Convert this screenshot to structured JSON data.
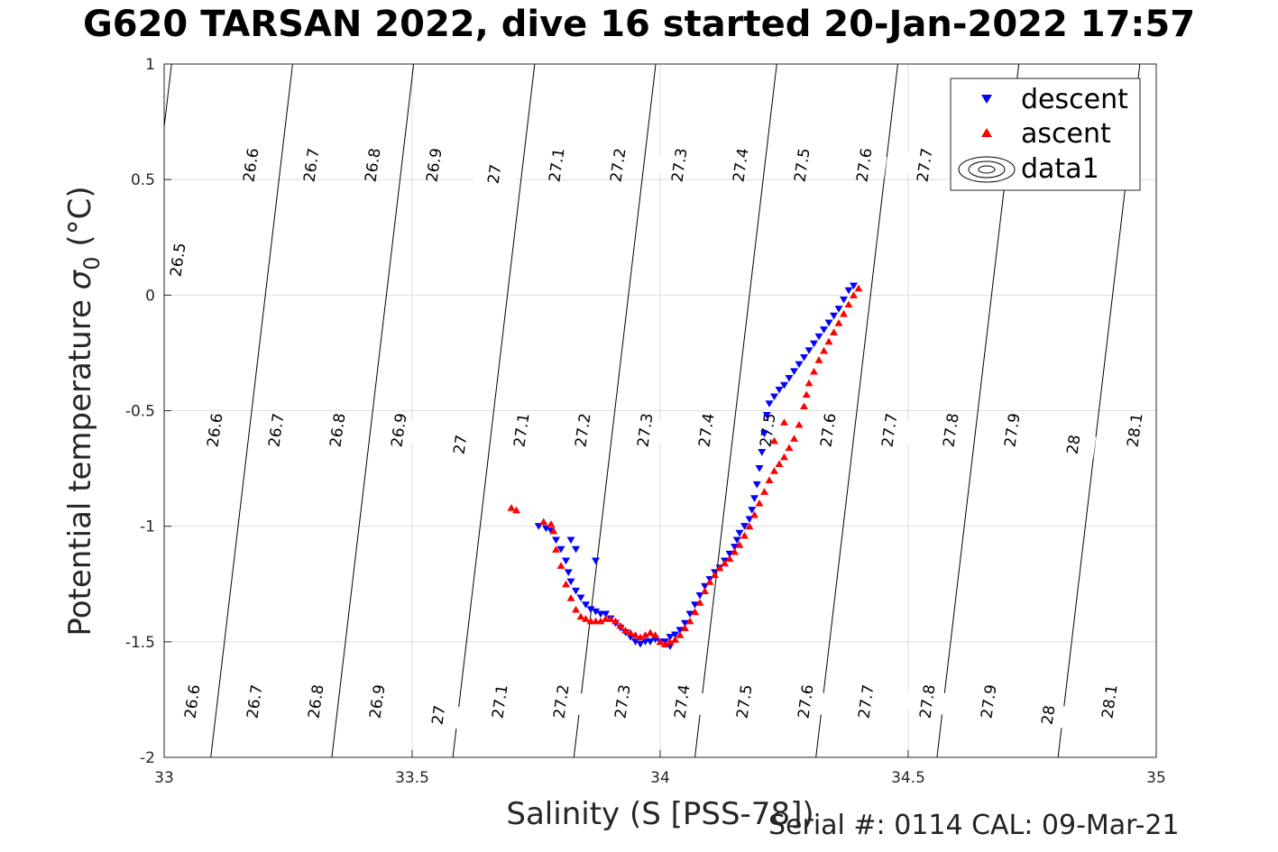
{
  "title": "G620 TARSAN 2022, dive 16 started 20-Jan-2022 17:57",
  "footer": "Serial #: 0114  CAL: 09-Mar-21",
  "chart_data": {
    "type": "scatter",
    "title": "G620 TARSAN 2022, dive 16 started 20-Jan-2022 17:57",
    "xlabel": "Salinity (S [PSS-78])",
    "ylabel_main": "Potential temperature ",
    "ylabel_sigma": "σ",
    "ylabel_sub": "0",
    "ylabel_unit": " (°C)",
    "xlim": [
      33,
      35
    ],
    "ylim": [
      -2,
      1
    ],
    "xticks": [
      33,
      33.5,
      34,
      34.5,
      35
    ],
    "xtick_labels": [
      "33",
      "33.5",
      "34",
      "34.5",
      "35"
    ],
    "yticks": [
      1,
      0.5,
      0,
      -0.5,
      -1,
      -1.5,
      -2
    ],
    "ytick_labels": [
      "1",
      "0.5",
      "0",
      "-0.5",
      "-1",
      "-1.5",
      "-2"
    ],
    "grid": true,
    "legend_position": "top-right",
    "legend": [
      {
        "name": "descent",
        "marker": "triangle-down",
        "color": "#0000ff"
      },
      {
        "name": "ascent",
        "marker": "triangle-up",
        "color": "#ff0000"
      },
      {
        "name": "data1",
        "marker": "contour"
      }
    ],
    "contour_levels": [
      26.5,
      26.6,
      26.7,
      26.8,
      26.9,
      27,
      27.1,
      27.2,
      27.3,
      27.4,
      27.5,
      27.6,
      27.7,
      27.8,
      27.9,
      28,
      28.1
    ],
    "contour_labels": [
      {
        "text": "26.5",
        "s": 33.05,
        "t": 0.15
      },
      {
        "text": "26.6",
        "s": 33.35,
        "t": 0.55
      },
      {
        "text": "26.7",
        "s": 33.59,
        "t": 0.55
      },
      {
        "text": "26.8",
        "s": 33.84,
        "t": 0.55
      },
      {
        "text": "26.9",
        "s": 34.09,
        "t": 0.55
      },
      {
        "text": "27",
        "s": 34.32,
        "t": 0.55
      },
      {
        "text": "27.1",
        "s": 34.56,
        "t": 0.55
      },
      {
        "text": "27.2",
        "s": 34.81,
        "t": 0.55
      },
      {
        "text": "27.3",
        "s": 35.05,
        "t": 0.55
      },
      {
        "text": "27.4",
        "s": 35.29,
        "t": 0.55
      },
      {
        "text": "27.5",
        "s": 35.52,
        "t": 0.55
      },
      {
        "text": "27.6",
        "s": 35.76,
        "t": 0.55
      },
      {
        "text": "27.7",
        "s": 36.0,
        "t": 0.55
      },
      {
        "text": "26.6",
        "s": 33.18,
        "t": -0.6
      },
      {
        "text": "26.7",
        "s": 33.43,
        "t": -0.6
      },
      {
        "text": "26.8",
        "s": 33.67,
        "t": -0.6
      },
      {
        "text": "26.9",
        "s": 33.92,
        "t": -0.6
      },
      {
        "text": "27",
        "s": 34.16,
        "t": -0.6
      },
      {
        "text": "27.1",
        "s": 34.4,
        "t": -0.6
      },
      {
        "text": "27.2",
        "s": 34.64,
        "t": -0.6
      },
      {
        "text": "27.3",
        "s": 34.88,
        "t": -0.6
      },
      {
        "text": "27.4",
        "s": 35.13,
        "t": -0.6
      },
      {
        "text": "27.5",
        "s": 35.37,
        "t": -0.6
      },
      {
        "text": "27.6",
        "s": 35.61,
        "t": -0.6
      },
      {
        "text": "27.7",
        "s": 35.85,
        "t": -0.6
      },
      {
        "text": "27.8",
        "s": 36.09,
        "t": -0.6
      },
      {
        "text": "27.9",
        "s": 36.33,
        "t": -0.6
      },
      {
        "text": "28",
        "s": 36.58,
        "t": -0.6
      },
      {
        "text": "28.1",
        "s": 36.82,
        "t": -0.6
      },
      {
        "text": "26.6",
        "s": 33.05,
        "t": -1.75
      },
      {
        "text": "26.7",
        "s": 33.3,
        "t": -1.75
      },
      {
        "text": "26.8",
        "s": 33.54,
        "t": -1.75
      },
      {
        "text": "26.9",
        "s": 33.79,
        "t": -1.75
      },
      {
        "text": "27",
        "s": 34.03,
        "t": -1.75
      },
      {
        "text": "27.1",
        "s": 34.27,
        "t": -1.75
      },
      {
        "text": "27.2",
        "s": 34.51,
        "t": -1.75
      },
      {
        "text": "27.3",
        "s": 34.76,
        "t": -1.75
      },
      {
        "text": "27.4",
        "s": 35.0,
        "t": -1.75
      },
      {
        "text": "27.5",
        "s": 35.24,
        "t": -1.75
      },
      {
        "text": "27.6",
        "s": 35.48,
        "t": -1.75
      },
      {
        "text": "27.7",
        "s": 35.72,
        "t": -1.75
      },
      {
        "text": "27.8",
        "s": 35.96,
        "t": -1.75
      },
      {
        "text": "27.9",
        "s": 36.2,
        "t": -1.75
      },
      {
        "text": "28",
        "s": 36.45,
        "t": -1.75
      },
      {
        "text": "28.1",
        "s": 36.69,
        "t": -1.75
      }
    ],
    "series": [
      {
        "name": "descent",
        "color": "#0000ff",
        "marker": "triangle-down",
        "points": [
          [
            34.39,
            0.04
          ],
          [
            34.38,
            0.02
          ],
          [
            34.37,
            -0.02
          ],
          [
            34.36,
            -0.06
          ],
          [
            34.35,
            -0.09
          ],
          [
            34.34,
            -0.12
          ],
          [
            34.33,
            -0.15
          ],
          [
            34.32,
            -0.18
          ],
          [
            34.31,
            -0.21
          ],
          [
            34.3,
            -0.24
          ],
          [
            34.29,
            -0.27
          ],
          [
            34.28,
            -0.3
          ],
          [
            34.27,
            -0.33
          ],
          [
            34.26,
            -0.36
          ],
          [
            34.25,
            -0.39
          ],
          [
            34.24,
            -0.41
          ],
          [
            34.23,
            -0.44
          ],
          [
            34.22,
            -0.47
          ],
          [
            34.215,
            -0.52
          ],
          [
            34.21,
            -0.6
          ],
          [
            34.205,
            -0.68
          ],
          [
            34.2,
            -0.75
          ],
          [
            34.195,
            -0.82
          ],
          [
            34.19,
            -0.88
          ],
          [
            34.185,
            -0.93
          ],
          [
            34.18,
            -0.97
          ],
          [
            34.17,
            -1.0
          ],
          [
            34.16,
            -1.03
          ],
          [
            34.155,
            -1.06
          ],
          [
            34.15,
            -1.09
          ],
          [
            34.14,
            -1.12
          ],
          [
            34.13,
            -1.15
          ],
          [
            34.12,
            -1.18
          ],
          [
            34.11,
            -1.2
          ],
          [
            34.1,
            -1.23
          ],
          [
            34.09,
            -1.26
          ],
          [
            34.08,
            -1.3
          ],
          [
            34.07,
            -1.34
          ],
          [
            34.06,
            -1.38
          ],
          [
            34.05,
            -1.42
          ],
          [
            34.04,
            -1.45
          ],
          [
            34.03,
            -1.47
          ],
          [
            34.02,
            -1.48
          ],
          [
            34.01,
            -1.5
          ],
          [
            34.0,
            -1.5
          ],
          [
            33.99,
            -1.49
          ],
          [
            33.98,
            -1.5
          ],
          [
            33.97,
            -1.5
          ],
          [
            33.96,
            -1.51
          ],
          [
            33.95,
            -1.5
          ],
          [
            33.94,
            -1.48
          ],
          [
            33.93,
            -1.46
          ],
          [
            33.92,
            -1.44
          ],
          [
            33.91,
            -1.42
          ],
          [
            33.9,
            -1.4
          ],
          [
            33.89,
            -1.38
          ],
          [
            33.88,
            -1.38
          ],
          [
            33.87,
            -1.37
          ],
          [
            33.86,
            -1.36
          ],
          [
            33.85,
            -1.34
          ],
          [
            33.84,
            -1.31
          ],
          [
            33.83,
            -1.28
          ],
          [
            33.82,
            -1.24
          ],
          [
            33.815,
            -1.2
          ],
          [
            33.81,
            -1.15
          ],
          [
            33.8,
            -1.1
          ],
          [
            33.79,
            -1.06
          ],
          [
            33.78,
            -1.02
          ],
          [
            33.77,
            -1.01
          ],
          [
            33.755,
            -1.0
          ],
          [
            33.82,
            -1.06
          ],
          [
            33.83,
            -1.1
          ],
          [
            33.87,
            -1.15
          ],
          [
            34.02,
            -1.52
          ]
        ]
      },
      {
        "name": "ascent",
        "color": "#ff0000",
        "marker": "triangle-up",
        "points": [
          [
            34.4,
            0.03
          ],
          [
            34.39,
            0.0
          ],
          [
            34.38,
            -0.04
          ],
          [
            34.37,
            -0.08
          ],
          [
            34.36,
            -0.12
          ],
          [
            34.35,
            -0.16
          ],
          [
            34.34,
            -0.2
          ],
          [
            34.33,
            -0.24
          ],
          [
            34.32,
            -0.28
          ],
          [
            34.31,
            -0.33
          ],
          [
            34.3,
            -0.38
          ],
          [
            34.295,
            -0.43
          ],
          [
            34.29,
            -0.48
          ],
          [
            34.28,
            -0.56
          ],
          [
            34.27,
            -0.62
          ],
          [
            34.26,
            -0.66
          ],
          [
            34.25,
            -0.7
          ],
          [
            34.24,
            -0.73
          ],
          [
            34.23,
            -0.76
          ],
          [
            34.22,
            -0.8
          ],
          [
            34.21,
            -0.85
          ],
          [
            34.2,
            -0.9
          ],
          [
            34.19,
            -0.95
          ],
          [
            34.18,
            -1.0
          ],
          [
            34.17,
            -1.04
          ],
          [
            34.16,
            -1.08
          ],
          [
            34.15,
            -1.11
          ],
          [
            34.14,
            -1.14
          ],
          [
            34.13,
            -1.16
          ],
          [
            34.12,
            -1.18
          ],
          [
            34.11,
            -1.21
          ],
          [
            34.1,
            -1.24
          ],
          [
            34.09,
            -1.28
          ],
          [
            34.08,
            -1.33
          ],
          [
            34.07,
            -1.37
          ],
          [
            34.06,
            -1.41
          ],
          [
            34.05,
            -1.44
          ],
          [
            34.04,
            -1.47
          ],
          [
            34.03,
            -1.49
          ],
          [
            34.02,
            -1.5
          ],
          [
            34.01,
            -1.51
          ],
          [
            34.0,
            -1.5
          ],
          [
            33.99,
            -1.47
          ],
          [
            33.98,
            -1.46
          ],
          [
            33.97,
            -1.47
          ],
          [
            33.96,
            -1.48
          ],
          [
            33.95,
            -1.47
          ],
          [
            33.94,
            -1.46
          ],
          [
            33.93,
            -1.45
          ],
          [
            33.92,
            -1.43
          ],
          [
            33.91,
            -1.41
          ],
          [
            33.9,
            -1.4
          ],
          [
            33.89,
            -1.4
          ],
          [
            33.88,
            -1.41
          ],
          [
            33.87,
            -1.41
          ],
          [
            33.86,
            -1.41
          ],
          [
            33.85,
            -1.4
          ],
          [
            33.84,
            -1.39
          ],
          [
            33.83,
            -1.36
          ],
          [
            33.82,
            -1.31
          ],
          [
            33.81,
            -1.25
          ],
          [
            33.8,
            -1.17
          ],
          [
            33.79,
            -1.1
          ],
          [
            33.785,
            -1.02
          ],
          [
            33.78,
            -0.99
          ],
          [
            33.765,
            -0.98
          ],
          [
            33.7,
            -0.92
          ],
          [
            33.71,
            -0.93
          ],
          [
            34.23,
            -0.63
          ],
          [
            34.25,
            -0.55
          ]
        ]
      }
    ]
  }
}
